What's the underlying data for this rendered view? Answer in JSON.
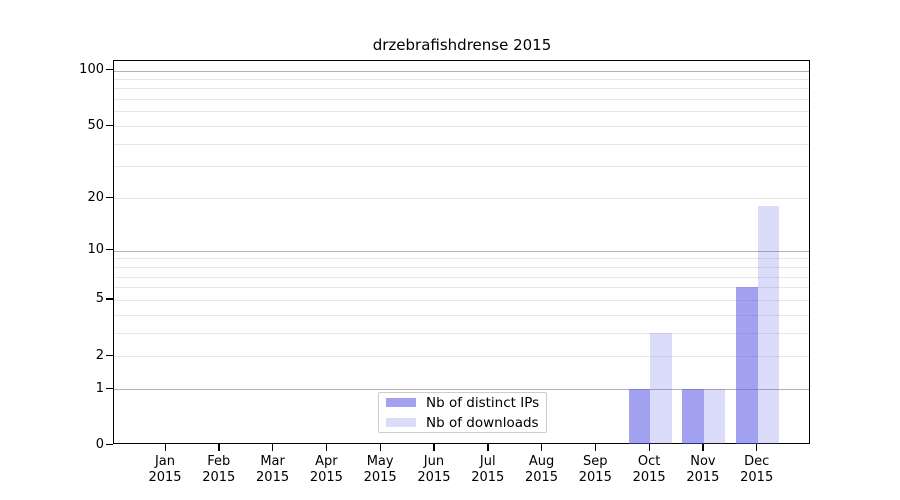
{
  "title": "drzebrafishdrense 2015",
  "chart_data": {
    "type": "bar",
    "title": "drzebrafishdrense 2015",
    "categories": [
      "Jan",
      "Feb",
      "Mar",
      "Apr",
      "May",
      "Jun",
      "Jul",
      "Aug",
      "Sep",
      "Oct",
      "Nov",
      "Dec"
    ],
    "category_year": "2015",
    "series": [
      {
        "name": "Nb of distinct IPs",
        "color": "rgba(85,85,230,0.55)",
        "values": [
          0,
          0,
          0,
          0,
          0,
          0,
          0,
          0,
          0,
          1,
          1,
          6
        ]
      },
      {
        "name": "Nb of downloads",
        "color": "rgba(85,85,230,0.21)",
        "values": [
          0,
          0,
          0,
          0,
          0,
          0,
          0,
          0,
          0,
          3,
          1,
          18
        ]
      }
    ],
    "xlabel": "",
    "ylabel": "",
    "yscale": "log1p",
    "ylim": [
      0,
      113
    ],
    "yticks": [
      0,
      1,
      2,
      5,
      10,
      20,
      50,
      100
    ],
    "minor_gridline_values": [
      2,
      3,
      4,
      5,
      6,
      7,
      8,
      9,
      20,
      30,
      40,
      50,
      60,
      70,
      80,
      90
    ],
    "major_gridline_values": [
      1,
      10,
      100
    ],
    "grid": true,
    "legend_position": "lower center inside"
  },
  "colors": {
    "distinct_ips": "rgba(85,85,230,0.55)",
    "downloads": "rgba(85,85,230,0.21)",
    "major_grid": "#b3b3b3",
    "minor_grid": "#e7e7e7",
    "axis": "#000000",
    "legend_border": "#cccccc",
    "background": "#ffffff"
  }
}
